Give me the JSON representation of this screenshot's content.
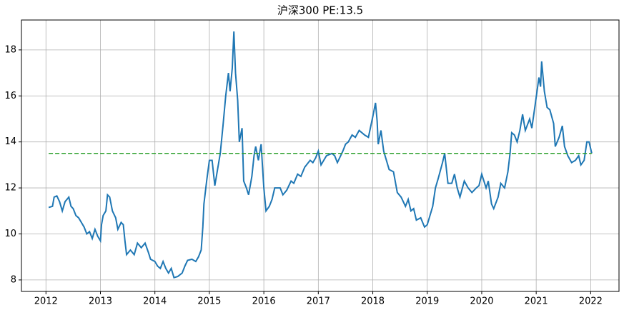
{
  "chart_data": {
    "type": "line",
    "title": "沪深300  PE:13.5",
    "x": [
      2012.05,
      2012.12,
      2012.15,
      2012.2,
      2012.25,
      2012.3,
      2012.35,
      2012.42,
      2012.46,
      2012.5,
      2012.55,
      2012.6,
      2012.65,
      2012.7,
      2012.75,
      2012.8,
      2012.85,
      2012.9,
      2012.95,
      2013.0,
      2013.02,
      2013.05,
      2013.1,
      2013.13,
      2013.17,
      2013.22,
      2013.28,
      2013.32,
      2013.38,
      2013.42,
      2013.45,
      2013.48,
      2013.55,
      2013.62,
      2013.68,
      2013.75,
      2013.82,
      2013.88,
      2013.92,
      2014.0,
      2014.05,
      2014.1,
      2014.15,
      2014.2,
      2014.25,
      2014.3,
      2014.35,
      2014.42,
      2014.5,
      2014.55,
      2014.6,
      2014.68,
      2014.75,
      2014.8,
      2014.85,
      2014.88,
      2014.9,
      2014.95,
      2015.0,
      2015.05,
      2015.1,
      2015.15,
      2015.2,
      2015.25,
      2015.3,
      2015.35,
      2015.38,
      2015.42,
      2015.45,
      2015.48,
      2015.52,
      2015.55,
      2015.6,
      2015.63,
      2015.68,
      2015.72,
      2015.78,
      2015.82,
      2015.85,
      2015.9,
      2015.95,
      2016.0,
      2016.04,
      2016.1,
      2016.15,
      2016.2,
      2016.3,
      2016.35,
      2016.42,
      2016.5,
      2016.55,
      2016.62,
      2016.68,
      2016.75,
      2016.85,
      2016.9,
      2016.95,
      2017.0,
      2017.05,
      2017.15,
      2017.25,
      2017.3,
      2017.35,
      2017.45,
      2017.5,
      2017.55,
      2017.62,
      2017.68,
      2017.75,
      2017.85,
      2017.92,
      2018.0,
      2018.05,
      2018.08,
      2018.1,
      2018.15,
      2018.2,
      2018.3,
      2018.38,
      2018.45,
      2018.52,
      2018.6,
      2018.65,
      2018.7,
      2018.75,
      2018.8,
      2018.88,
      2018.95,
      2019.0,
      2019.05,
      2019.1,
      2019.15,
      2019.2,
      2019.28,
      2019.32,
      2019.38,
      2019.45,
      2019.5,
      2019.55,
      2019.6,
      2019.68,
      2019.75,
      2019.82,
      2019.9,
      2019.95,
      2020.0,
      2020.08,
      2020.12,
      2020.18,
      2020.22,
      2020.3,
      2020.35,
      2020.42,
      2020.48,
      2020.52,
      2020.55,
      2020.6,
      2020.65,
      2020.7,
      2020.75,
      2020.8,
      2020.88,
      2020.92,
      2020.98,
      2021.05,
      2021.08,
      2021.1,
      2021.15,
      2021.2,
      2021.25,
      2021.32,
      2021.35,
      2021.42,
      2021.48,
      2021.52,
      2021.58,
      2021.65,
      2021.72,
      2021.78,
      2021.82,
      2021.88,
      2021.93,
      2021.97,
      2022.02
    ],
    "series": [
      {
        "color": "#1f77b4",
        "values": [
          11.15,
          11.2,
          11.6,
          11.65,
          11.4,
          11.0,
          11.4,
          11.6,
          11.2,
          11.1,
          10.8,
          10.7,
          10.5,
          10.3,
          10.0,
          10.1,
          9.8,
          10.2,
          9.9,
          9.7,
          10.4,
          10.8,
          11.0,
          11.7,
          11.6,
          11.0,
          10.7,
          10.2,
          10.5,
          10.4,
          9.7,
          9.1,
          9.3,
          9.1,
          9.6,
          9.4,
          9.6,
          9.2,
          8.9,
          8.8,
          8.6,
          8.5,
          8.8,
          8.5,
          8.3,
          8.5,
          8.1,
          8.15,
          8.3,
          8.6,
          8.85,
          8.9,
          8.8,
          9.0,
          9.3,
          10.3,
          11.3,
          12.3,
          13.2,
          13.2,
          12.1,
          12.8,
          13.5,
          14.7,
          16.0,
          17.0,
          16.2,
          17.2,
          18.8,
          17.0,
          15.8,
          14.0,
          14.6,
          12.3,
          12.0,
          11.7,
          12.5,
          13.4,
          13.8,
          13.2,
          13.9,
          12.0,
          11.0,
          11.2,
          11.5,
          12.0,
          12.0,
          11.7,
          11.9,
          12.3,
          12.2,
          12.6,
          12.5,
          12.9,
          13.2,
          13.1,
          13.3,
          13.6,
          13.0,
          13.4,
          13.5,
          13.4,
          13.1,
          13.6,
          13.9,
          14.0,
          14.3,
          14.2,
          14.5,
          14.3,
          14.2,
          15.1,
          15.7,
          14.9,
          13.9,
          14.5,
          13.6,
          12.8,
          12.7,
          11.8,
          11.6,
          11.2,
          11.5,
          11.0,
          11.1,
          10.6,
          10.7,
          10.3,
          10.4,
          10.8,
          11.2,
          12.0,
          12.4,
          13.1,
          13.5,
          12.2,
          12.2,
          12.6,
          12.0,
          11.6,
          12.3,
          12.0,
          11.8,
          12.0,
          12.1,
          12.6,
          12.0,
          12.3,
          11.3,
          11.1,
          11.6,
          12.2,
          12.0,
          12.7,
          13.5,
          14.4,
          14.3,
          14.0,
          14.5,
          15.2,
          14.5,
          15.0,
          14.6,
          15.6,
          16.8,
          16.4,
          17.5,
          16.2,
          15.5,
          15.4,
          14.8,
          13.8,
          14.2,
          14.7,
          13.8,
          13.4,
          13.1,
          13.2,
          13.4,
          13.0,
          13.2,
          14.0,
          14.0,
          13.5
        ]
      }
    ],
    "hline": {
      "value": 13.5,
      "color": "#2ca02c"
    },
    "xlim": [
      2011.55,
      2022.52
    ],
    "ylim": [
      7.5,
      19.3
    ],
    "xticks": [
      2012,
      2013,
      2014,
      2015,
      2016,
      2017,
      2018,
      2019,
      2020,
      2021,
      2022
    ],
    "yticks": [
      8,
      10,
      12,
      14,
      16,
      18
    ],
    "grid": true
  }
}
